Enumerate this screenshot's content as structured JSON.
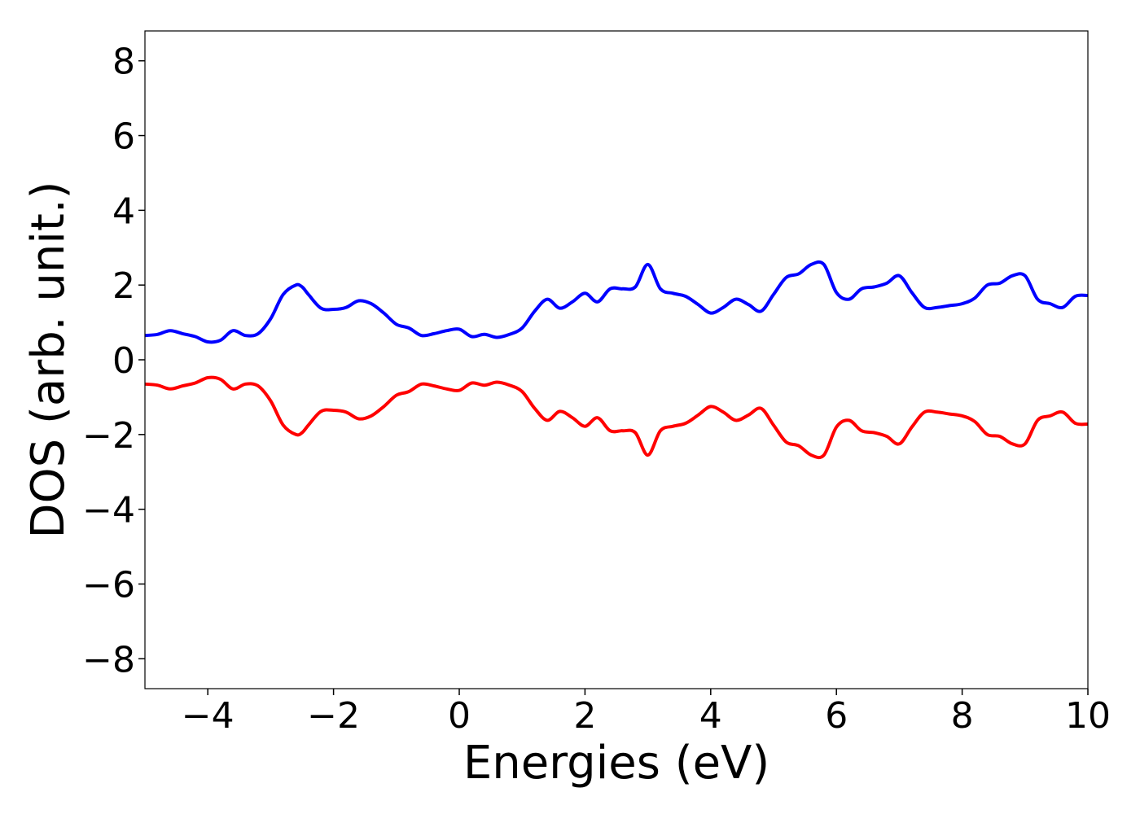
{
  "chart_data": {
    "type": "line",
    "xlabel": "Energies (eV)",
    "ylabel": "DOS (arb. unit.)",
    "xlim": [
      -5,
      10
    ],
    "ylim": [
      -8.8,
      8.8
    ],
    "xticks": [
      -4,
      -2,
      0,
      2,
      4,
      6,
      8,
      10
    ],
    "yticks": [
      -8,
      -6,
      -4,
      -2,
      0,
      2,
      4,
      6,
      8
    ],
    "xtick_labels": [
      "−4",
      "−2",
      "0",
      "2",
      "4",
      "6",
      "8",
      "10"
    ],
    "ytick_labels": [
      "−8",
      "−6",
      "−4",
      "−2",
      "0",
      "2",
      "4",
      "6",
      "8"
    ],
    "grid": false,
    "series": [
      {
        "color": "#0000ff",
        "x": [
          -5.0,
          -4.8,
          -4.6,
          -4.4,
          -4.2,
          -4.0,
          -3.8,
          -3.6,
          -3.4,
          -3.2,
          -3.0,
          -2.8,
          -2.6,
          -2.5,
          -2.4,
          -2.2,
          -2.0,
          -1.8,
          -1.6,
          -1.4,
          -1.2,
          -1.0,
          -0.8,
          -0.6,
          -0.4,
          -0.2,
          0.0,
          0.2,
          0.4,
          0.6,
          0.8,
          1.0,
          1.2,
          1.4,
          1.6,
          1.8,
          2.0,
          2.2,
          2.4,
          2.6,
          2.8,
          3.0,
          3.2,
          3.4,
          3.6,
          3.8,
          4.0,
          4.2,
          4.4,
          4.6,
          4.8,
          5.0,
          5.2,
          5.4,
          5.6,
          5.8,
          6.0,
          6.2,
          6.4,
          6.6,
          6.8,
          7.0,
          7.2,
          7.4,
          7.6,
          7.8,
          8.0,
          8.2,
          8.4,
          8.6,
          8.8,
          9.0,
          9.2,
          9.4,
          9.6,
          9.8,
          10.0
        ],
        "values": [
          0.65,
          0.68,
          0.78,
          0.7,
          0.62,
          0.48,
          0.52,
          0.78,
          0.65,
          0.7,
          1.1,
          1.75,
          2.0,
          1.95,
          1.75,
          1.38,
          1.35,
          1.4,
          1.58,
          1.5,
          1.25,
          0.95,
          0.85,
          0.65,
          0.7,
          0.78,
          0.82,
          0.62,
          0.68,
          0.6,
          0.68,
          0.85,
          1.3,
          1.62,
          1.38,
          1.55,
          1.78,
          1.55,
          1.9,
          1.9,
          1.95,
          2.55,
          1.9,
          1.78,
          1.7,
          1.48,
          1.25,
          1.4,
          1.62,
          1.48,
          1.3,
          1.75,
          2.2,
          2.3,
          2.55,
          2.55,
          1.8,
          1.62,
          1.9,
          1.95,
          2.05,
          2.25,
          1.8,
          1.4,
          1.4,
          1.45,
          1.5,
          1.65,
          2.0,
          2.05,
          2.25,
          2.25,
          1.62,
          1.5,
          1.4,
          1.7,
          1.72
        ]
      },
      {
        "color": "#ff0000",
        "x": [
          -5.0,
          -4.8,
          -4.6,
          -4.4,
          -4.2,
          -4.0,
          -3.8,
          -3.6,
          -3.4,
          -3.2,
          -3.0,
          -2.8,
          -2.6,
          -2.5,
          -2.4,
          -2.2,
          -2.0,
          -1.8,
          -1.6,
          -1.4,
          -1.2,
          -1.0,
          -0.8,
          -0.6,
          -0.4,
          -0.2,
          0.0,
          0.2,
          0.4,
          0.6,
          0.8,
          1.0,
          1.2,
          1.4,
          1.6,
          1.8,
          2.0,
          2.2,
          2.4,
          2.6,
          2.8,
          3.0,
          3.2,
          3.4,
          3.6,
          3.8,
          4.0,
          4.2,
          4.4,
          4.6,
          4.8,
          5.0,
          5.2,
          5.4,
          5.6,
          5.8,
          6.0,
          6.2,
          6.4,
          6.6,
          6.8,
          7.0,
          7.2,
          7.4,
          7.6,
          7.8,
          8.0,
          8.2,
          8.4,
          8.6,
          8.8,
          9.0,
          9.2,
          9.4,
          9.6,
          9.8,
          10.0
        ],
        "values": [
          -0.65,
          -0.68,
          -0.78,
          -0.7,
          -0.62,
          -0.48,
          -0.52,
          -0.78,
          -0.65,
          -0.7,
          -1.1,
          -1.75,
          -2.0,
          -1.95,
          -1.75,
          -1.38,
          -1.35,
          -1.4,
          -1.58,
          -1.5,
          -1.25,
          -0.95,
          -0.85,
          -0.65,
          -0.7,
          -0.78,
          -0.82,
          -0.62,
          -0.68,
          -0.6,
          -0.68,
          -0.85,
          -1.3,
          -1.62,
          -1.38,
          -1.55,
          -1.78,
          -1.55,
          -1.9,
          -1.9,
          -1.95,
          -2.55,
          -1.9,
          -1.78,
          -1.7,
          -1.48,
          -1.25,
          -1.4,
          -1.62,
          -1.48,
          -1.3,
          -1.75,
          -2.2,
          -2.3,
          -2.55,
          -2.55,
          -1.8,
          -1.62,
          -1.9,
          -1.95,
          -2.05,
          -2.25,
          -1.8,
          -1.4,
          -1.4,
          -1.45,
          -1.5,
          -1.65,
          -2.0,
          -2.05,
          -2.25,
          -2.25,
          -1.62,
          -1.5,
          -1.4,
          -1.7,
          -1.72
        ]
      }
    ]
  }
}
